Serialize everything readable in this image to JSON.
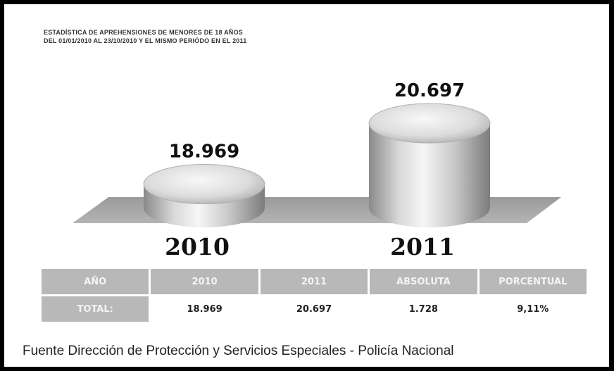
{
  "title": {
    "line1": "ESTADÍSTICA DE APREHENSIONES DE MENORES DE 18 AÑOS",
    "line2": "DEL 01/01/2010 AL 23/10/2010 Y EL MISMO PERIÓDO EN EL 2011"
  },
  "chart_data": {
    "type": "bar",
    "style": "3d-cylinder",
    "categories": [
      "2010",
      "2011"
    ],
    "values": [
      18969,
      20697
    ],
    "value_labels": [
      "18.969",
      "20.697"
    ],
    "color": "#c8c8c8"
  },
  "table": {
    "headers": [
      "AÑO",
      "2010",
      "2011",
      "ABSOLUTA",
      "PORCENTUAL"
    ],
    "row_label": "TOTAL:",
    "row_values": [
      "18.969",
      "20.697",
      "1.728",
      "9,11%"
    ]
  },
  "source": "Fuente Dirección de Protección y Servicios Especiales - Policía Nacional"
}
